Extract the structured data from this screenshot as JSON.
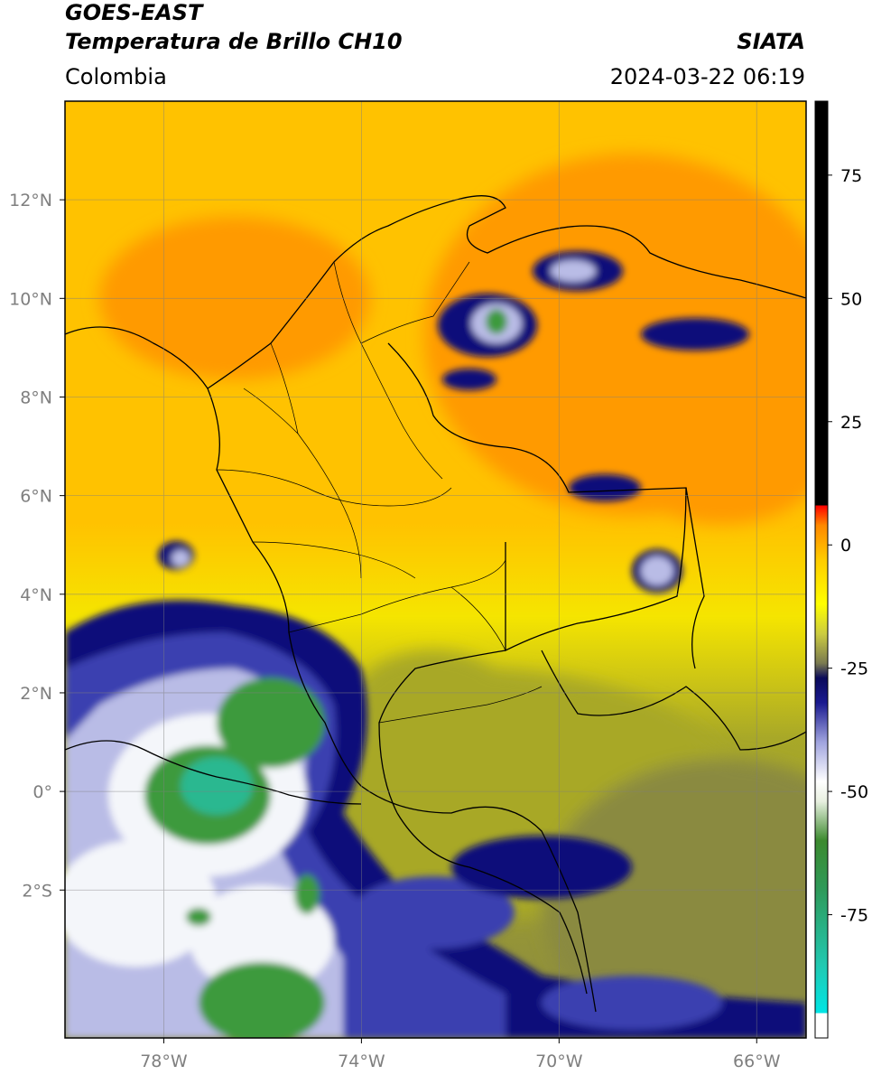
{
  "header": {
    "satellite": "GOES-EAST",
    "product": "Temperatura de Brillo CH10",
    "brand": "SIATA",
    "region": "Colombia",
    "timestamp": "2024-03-22 06:19"
  },
  "map": {
    "lon_range": [
      -80,
      -65
    ],
    "lat_range": [
      -5,
      14
    ],
    "x_ticks": [
      {
        "lon": -78,
        "label": "78°W"
      },
      {
        "lon": -74,
        "label": "74°W"
      },
      {
        "lon": -70,
        "label": "70°W"
      },
      {
        "lon": -66,
        "label": "66°W"
      }
    ],
    "y_ticks": [
      {
        "lat": 12,
        "label": "12°N"
      },
      {
        "lat": 10,
        "label": "10°N"
      },
      {
        "lat": 8,
        "label": "8°N"
      },
      {
        "lat": 6,
        "label": "6°N"
      },
      {
        "lat": 4,
        "label": "4°N"
      },
      {
        "lat": 2,
        "label": "2°N"
      },
      {
        "lat": 0,
        "label": "0°"
      },
      {
        "lat": -2,
        "label": "2°S"
      }
    ],
    "grid": true,
    "colors": {
      "warm_sea": "#ff9a00",
      "warm_land": "#ffc200",
      "yellow": "#f5e500",
      "olive": "#a8a828",
      "gray_olive": "#8a8a40",
      "deep_blue": "#0a0a7a",
      "mid_blue": "#3a40b0",
      "lavender": "#b9bce6",
      "white_cloud": "#f4f6fa",
      "green": "#3c9a3c",
      "teal": "#2ab890"
    }
  },
  "colorbar": {
    "range": [
      -100,
      90
    ],
    "ticks": [
      {
        "value": 75,
        "label": "75"
      },
      {
        "value": 50,
        "label": "50"
      },
      {
        "value": 25,
        "label": "25"
      },
      {
        "value": 0,
        "label": "0"
      },
      {
        "value": -25,
        "label": "-25"
      },
      {
        "value": -50,
        "label": "-50"
      },
      {
        "value": -75,
        "label": "-75"
      }
    ],
    "stops": [
      {
        "value": -100,
        "color": "#ffffff"
      },
      {
        "value": -95,
        "color": "#ffffff"
      },
      {
        "value": -95,
        "color": "#00e5e5"
      },
      {
        "value": -85,
        "color": "#22c8b0"
      },
      {
        "value": -70,
        "color": "#2e9a5a"
      },
      {
        "value": -60,
        "color": "#3c8a2e"
      },
      {
        "value": -52,
        "color": "#e8f0e0"
      },
      {
        "value": -48,
        "color": "#ffffff"
      },
      {
        "value": -40,
        "color": "#a0a4de"
      },
      {
        "value": -32,
        "color": "#1a1a90"
      },
      {
        "value": -27,
        "color": "#0a0a5a"
      },
      {
        "value": -24,
        "color": "#7a7a50"
      },
      {
        "value": -18,
        "color": "#cccc40"
      },
      {
        "value": -12,
        "color": "#ffff00"
      },
      {
        "value": -3,
        "color": "#ffcc00"
      },
      {
        "value": 4,
        "color": "#ff8800"
      },
      {
        "value": 8,
        "color": "#ff0000"
      },
      {
        "value": 8,
        "color": "#000000"
      },
      {
        "value": 90,
        "color": "#000000"
      }
    ]
  }
}
